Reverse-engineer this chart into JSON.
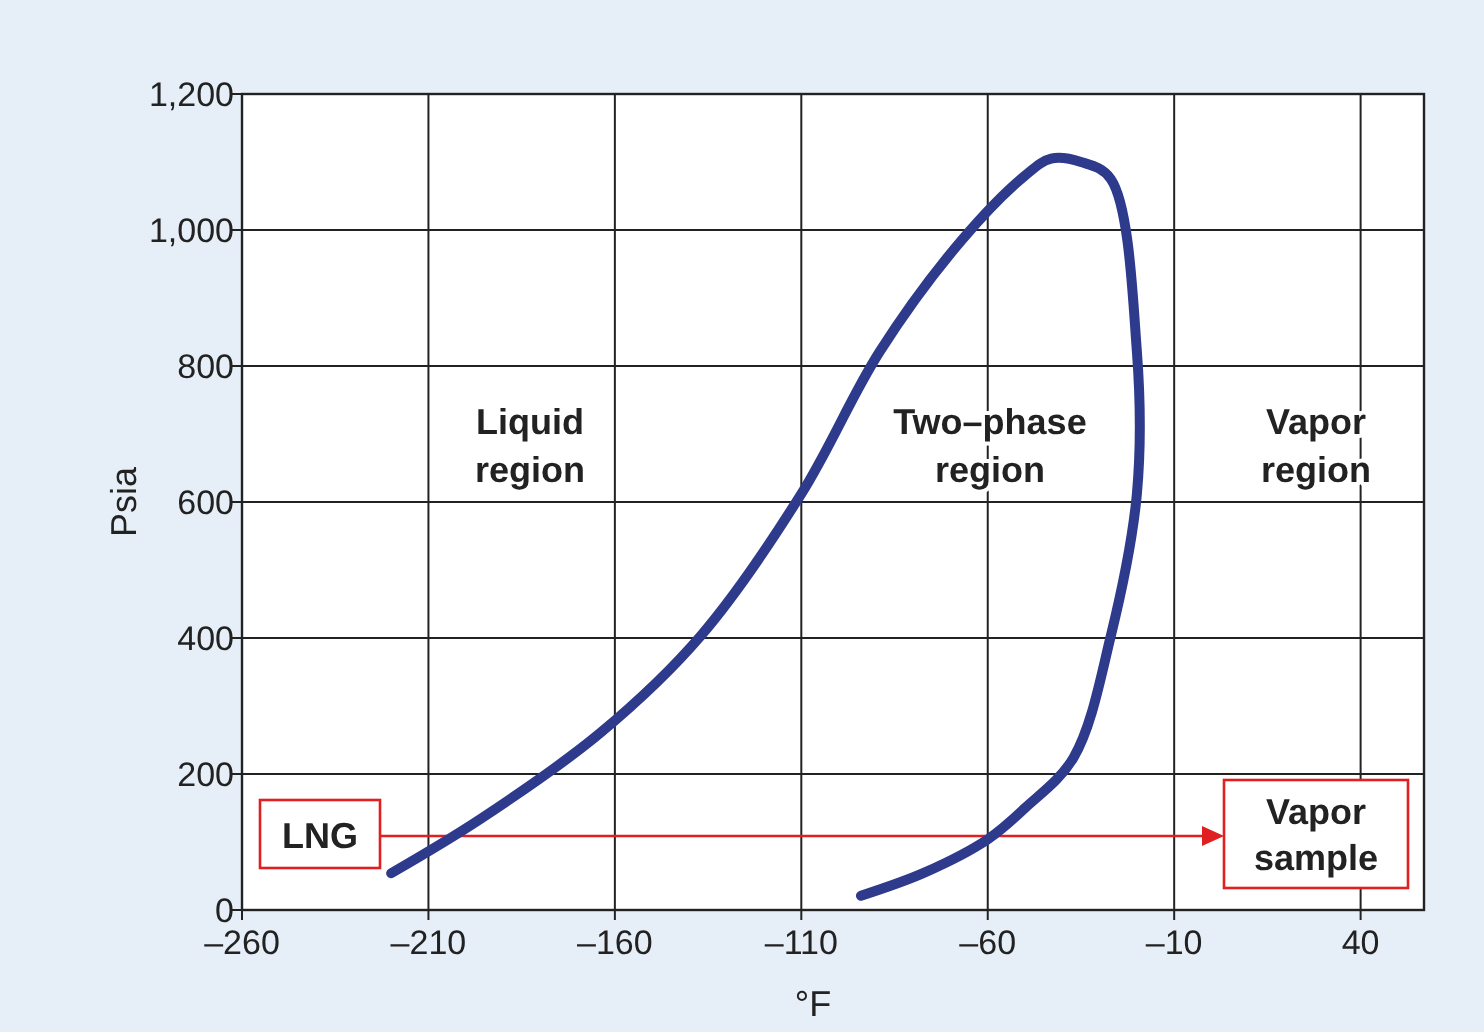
{
  "chart_data": {
    "type": "line",
    "xlabel": "°F",
    "ylabel": "Psia",
    "xlim": [
      -260,
      57
    ],
    "xticks": [
      {
        "value": -260,
        "label": "–260"
      },
      {
        "value": -210,
        "label": "–210"
      },
      {
        "value": -160,
        "label": "–160"
      },
      {
        "value": -110,
        "label": "–110"
      },
      {
        "value": -60,
        "label": "–60"
      },
      {
        "value": -10,
        "label": "–10"
      },
      40
    ],
    "ylim": [
      0,
      1200
    ],
    "yticks": [
      0,
      200,
      400,
      600,
      800,
      {
        "value": 1000,
        "label": "1,000"
      },
      {
        "value": 1200,
        "label": "1,200"
      }
    ],
    "grid": true,
    "series": [
      {
        "color": "#2e3a8c",
        "x": [
          -220,
          -196,
          -164,
          -137,
          -110,
          -89,
          -67,
          -50,
          -43,
          -35,
          -27,
          -20,
          -20,
          -27,
          -37,
          -50,
          -60,
          -77,
          -94
        ],
        "values": [
          54,
          134,
          260,
          403,
          612,
          821,
          985,
          1080,
          1105,
          1100,
          1075,
          821,
          612,
          403,
          224,
          150,
          104,
          55,
          21
        ]
      }
    ],
    "annotations": [
      "Liquid region",
      "Two–phase region",
      "Vapor region",
      "LNG",
      "Vapor sample"
    ]
  }
}
